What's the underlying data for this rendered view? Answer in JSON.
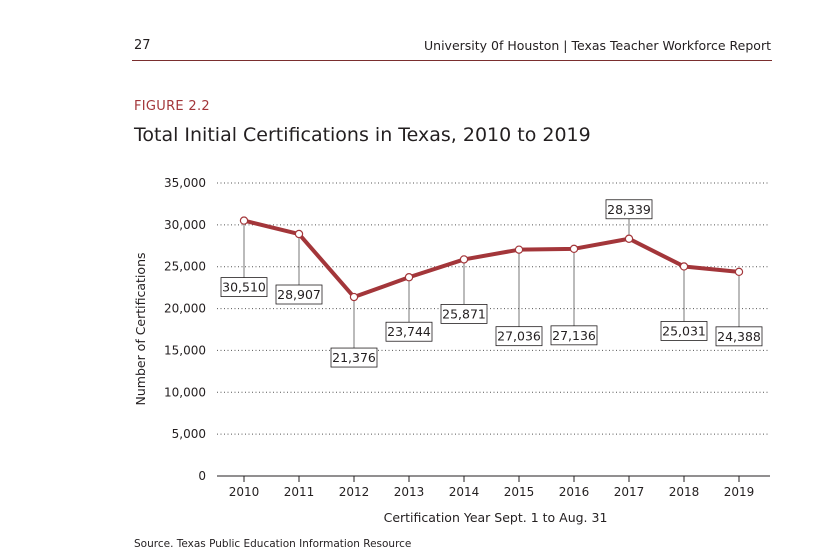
{
  "header": {
    "page_number": "27",
    "running_title": "University 0f Houston | Texas Teacher Workforce Report"
  },
  "figure": {
    "label": "FIGURE 2.2",
    "title": "Total Initial Certifications in Texas, 2010 to 2019",
    "source": "Source. Texas Public Education Information Resource"
  },
  "colors": {
    "line": "#a3363a",
    "accent_label": "#a3363a",
    "header_rule": "#7a2e2e"
  },
  "chart_data": {
    "type": "line",
    "x": [
      "2010",
      "2011",
      "2012",
      "2013",
      "2014",
      "2015",
      "2016",
      "2017",
      "2018",
      "2019"
    ],
    "series": [
      {
        "values": [
          30510,
          28907,
          21376,
          23744,
          25871,
          27036,
          27136,
          28339,
          25031,
          24388
        ],
        "labels": [
          "30,510",
          "28,907",
          "21,376",
          "23,744",
          "25,871",
          "27,036",
          "27,136",
          "28,339",
          "25,031",
          "24,388"
        ],
        "label_positions": [
          "below",
          "below",
          "below",
          "below",
          "below",
          "below",
          "below",
          "above",
          "below",
          "below"
        ]
      }
    ],
    "xlabel": "Certification Year Sept. 1 to Aug. 31",
    "ylabel": "Number of Certifications",
    "ylim": [
      0,
      35000
    ],
    "yticks": [
      0,
      5000,
      10000,
      15000,
      20000,
      25000,
      30000,
      35000
    ],
    "ytick_labels": [
      "0",
      "5,000",
      "10,000",
      "15,000",
      "20,000",
      "25,000",
      "30,000",
      "35,000"
    ],
    "grid": "horizontal-dotted",
    "legend": "none"
  }
}
